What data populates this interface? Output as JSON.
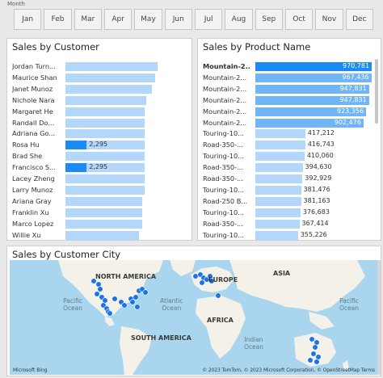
{
  "month_slicer": {
    "label": "Month",
    "months": [
      "Jan",
      "Feb",
      "Mar",
      "Apr",
      "May",
      "Jun",
      "Jul",
      "Aug",
      "Sep",
      "Oct",
      "Nov",
      "Dec"
    ]
  },
  "customer_chart": {
    "title": "Sales by Customer",
    "rows": [
      {
        "label": "Jordan Turn...",
        "fraction": 1.0,
        "value": ""
      },
      {
        "label": "Maurice Shan",
        "fraction": 0.97,
        "value": ""
      },
      {
        "label": "Janet Munoz",
        "fraction": 0.94,
        "value": ""
      },
      {
        "label": "Nichole Nara",
        "fraction": 0.88,
        "value": ""
      },
      {
        "label": "Margaret He",
        "fraction": 0.86,
        "value": ""
      },
      {
        "label": "Randall Do...",
        "fraction": 0.86,
        "value": ""
      },
      {
        "label": "Adriana Go...",
        "fraction": 0.86,
        "value": ""
      },
      {
        "label": "Rosa Hu",
        "fraction": 0.86,
        "value": "2,295",
        "highlight": 0.23
      },
      {
        "label": "Brad She",
        "fraction": 0.86,
        "value": ""
      },
      {
        "label": "Francisco S...",
        "fraction": 0.86,
        "value": "2,295",
        "highlight": 0.23
      },
      {
        "label": "Lacey Zheng",
        "fraction": 0.86,
        "value": ""
      },
      {
        "label": "Larry Munoz",
        "fraction": 0.86,
        "value": ""
      },
      {
        "label": "Ariana Gray",
        "fraction": 0.83,
        "value": ""
      },
      {
        "label": "Franklin Xu",
        "fraction": 0.83,
        "value": ""
      },
      {
        "label": "Marco Lopez",
        "fraction": 0.83,
        "value": ""
      },
      {
        "label": "Willie Xu",
        "fraction": 0.8,
        "value": ""
      }
    ]
  },
  "product_chart": {
    "title": "Sales by Product Name",
    "rows": [
      {
        "label": "Mountain-2...",
        "value": 970781,
        "display": "970,781",
        "highlight": true
      },
      {
        "label": "Mountain-2...",
        "value": 967436,
        "display": "967,436"
      },
      {
        "label": "Mountain-2...",
        "value": 947831,
        "display": "947,831"
      },
      {
        "label": "Mountain-2...",
        "value": 947831,
        "display": "947,831"
      },
      {
        "label": "Mountain-2...",
        "value": 923356,
        "display": "923,356"
      },
      {
        "label": "Mountain-2...",
        "value": 902476,
        "display": "902,476"
      },
      {
        "label": "Touring-10...",
        "value": 417212,
        "display": "417,212"
      },
      {
        "label": "Road-350-...",
        "value": 416743,
        "display": "416,743"
      },
      {
        "label": "Touring-10...",
        "value": 410060,
        "display": "410,060"
      },
      {
        "label": "Road-350-...",
        "value": 394630,
        "display": "394,630"
      },
      {
        "label": "Road-350-...",
        "value": 392929,
        "display": "392,929"
      },
      {
        "label": "Touring-10...",
        "value": 381476,
        "display": "381,476"
      },
      {
        "label": "Road-250 B...",
        "value": 381163,
        "display": "381,163"
      },
      {
        "label": "Touring-10...",
        "value": 376683,
        "display": "376,683"
      },
      {
        "label": "Road-350-...",
        "value": 367414,
        "display": "367,414"
      },
      {
        "label": "Touring-10...",
        "value": 355226,
        "display": "355,226"
      }
    ]
  },
  "map_chart": {
    "title": "Sales by Customer City",
    "labels": {
      "north_america": "NORTH AMERICA",
      "europe": "EUROPE",
      "asia": "ASIA",
      "africa": "AFRICA",
      "south_america": "SOUTH AMERICA",
      "pacific_left": "Pacific\nOcean",
      "atlantic": "Atlantic\nOcean",
      "pacific_right": "Pacific\nOcean",
      "indian": "Indian\nOcean"
    },
    "attribution": "© 2023 TomTom, © 2023 Microsoft Corporation, © OpenStreetMap  Terms",
    "brand": "Microsoft Bing",
    "colors": {
      "ocean": "#a9d6ee",
      "land": "#f3f1e8",
      "point": "#1a73e8"
    }
  }
}
